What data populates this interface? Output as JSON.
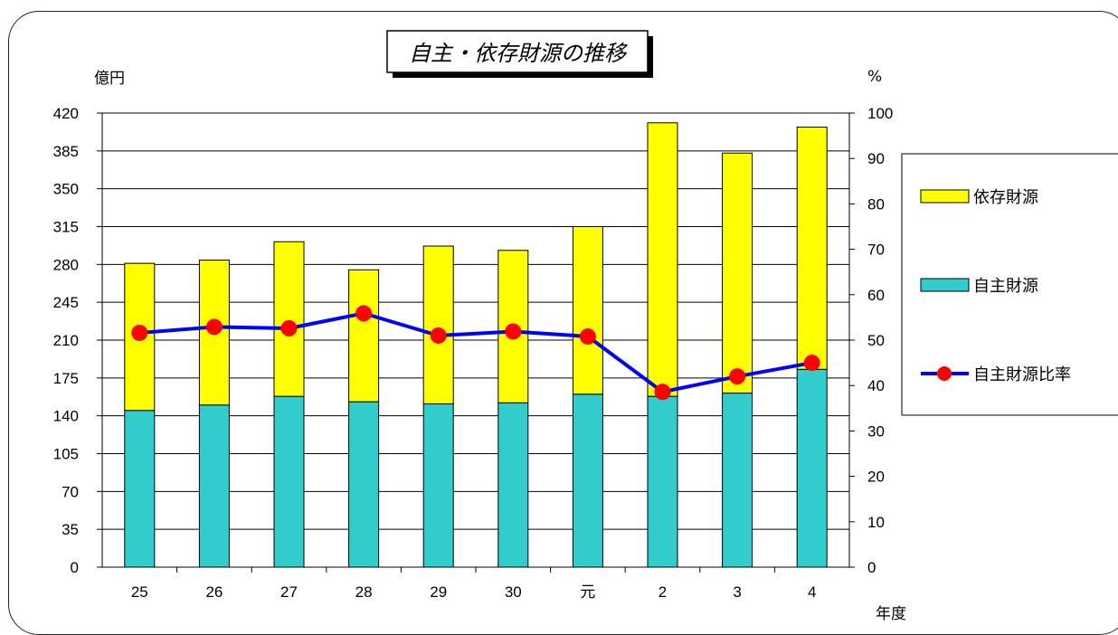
{
  "chart_data": {
    "type": "bar",
    "stacked": true,
    "title": "自主・依存財源の推移",
    "xlabel": "年度",
    "ylabel": "億円",
    "y2label": "%",
    "categories": [
      "25",
      "26",
      "27",
      "28",
      "29",
      "30",
      "元",
      "2",
      "3",
      "4"
    ],
    "ylim": [
      0,
      420
    ],
    "y_ticks": [
      0,
      35,
      70,
      105,
      140,
      175,
      210,
      245,
      280,
      315,
      350,
      385,
      420
    ],
    "y2lim": [
      0,
      100
    ],
    "y2_ticks": [
      0,
      10,
      20,
      30,
      40,
      50,
      60,
      70,
      80,
      90,
      100
    ],
    "grid": true,
    "legend_position": "right",
    "series": [
      {
        "name": "自主財源",
        "type": "bar",
        "axis": "left",
        "color": "#33cccc",
        "values": [
          145,
          150,
          158,
          153,
          151,
          152,
          160,
          158,
          161,
          183
        ]
      },
      {
        "name": "依存財源",
        "type": "bar",
        "axis": "left",
        "color": "#ffff00",
        "values": [
          136,
          134,
          143,
          122,
          146,
          141,
          155,
          253,
          222,
          224
        ]
      },
      {
        "name": "自主財源比率",
        "type": "line",
        "axis": "right",
        "color": "#0000ff",
        "marker_color": "#ff0000",
        "values": [
          51.6,
          52.9,
          52.6,
          55.9,
          51.0,
          51.9,
          50.8,
          38.6,
          42.0,
          45.0
        ]
      }
    ]
  }
}
